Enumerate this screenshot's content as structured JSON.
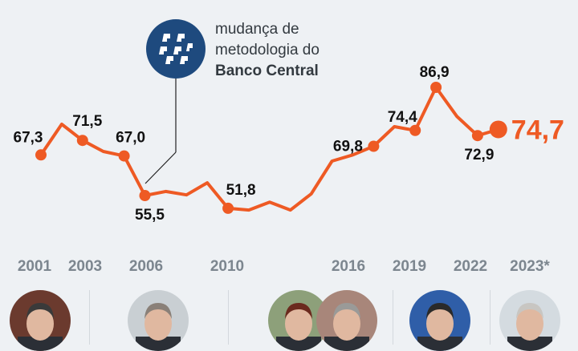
{
  "annotation": {
    "line1": "mudança de",
    "line2": "metodologia do",
    "line3": "Banco Central",
    "icon": "banco-central-logo"
  },
  "colors": {
    "line": "#ee5a24",
    "background": "#eef1f4",
    "year_label": "#7c868f",
    "badge": "#1e4a7e"
  },
  "chart_data": {
    "type": "line",
    "x": [
      2001,
      2002,
      2003,
      2004,
      2005,
      2006,
      2007,
      2008,
      2009,
      2010,
      2011,
      2012,
      2013,
      2014,
      2015,
      2016,
      2017,
      2018,
      2019,
      2020,
      2021,
      2022,
      2023
    ],
    "values": [
      67.3,
      76.2,
      71.5,
      68.3,
      67.0,
      55.5,
      56.7,
      55.7,
      59.2,
      51.8,
      51.3,
      53.6,
      51.3,
      56.0,
      65.5,
      67.3,
      69.8,
      75.5,
      74.4,
      86.9,
      78.5,
      72.9,
      74.7
    ],
    "data_labels": [
      {
        "index": 0,
        "text": "67,3"
      },
      {
        "index": 2,
        "text": "71,5"
      },
      {
        "index": 4,
        "text": "67,0"
      },
      {
        "index": 5,
        "text": "55,5"
      },
      {
        "index": 9,
        "text": "51,8"
      },
      {
        "index": 16,
        "text": "69,8"
      },
      {
        "index": 18,
        "text": "74,4"
      },
      {
        "index": 19,
        "text": "86,9"
      },
      {
        "index": 21,
        "text": "72,9"
      },
      {
        "index": 22,
        "text": "74,7"
      }
    ],
    "year_labels": [
      "2001",
      "2003",
      "2006",
      "2010",
      "2016",
      "2019",
      "2022",
      "2023*"
    ],
    "grid": false,
    "legend": "none"
  },
  "presidents": [
    "photo-1",
    "photo-2",
    "photo-3",
    "photo-4",
    "photo-5",
    "photo-6"
  ]
}
